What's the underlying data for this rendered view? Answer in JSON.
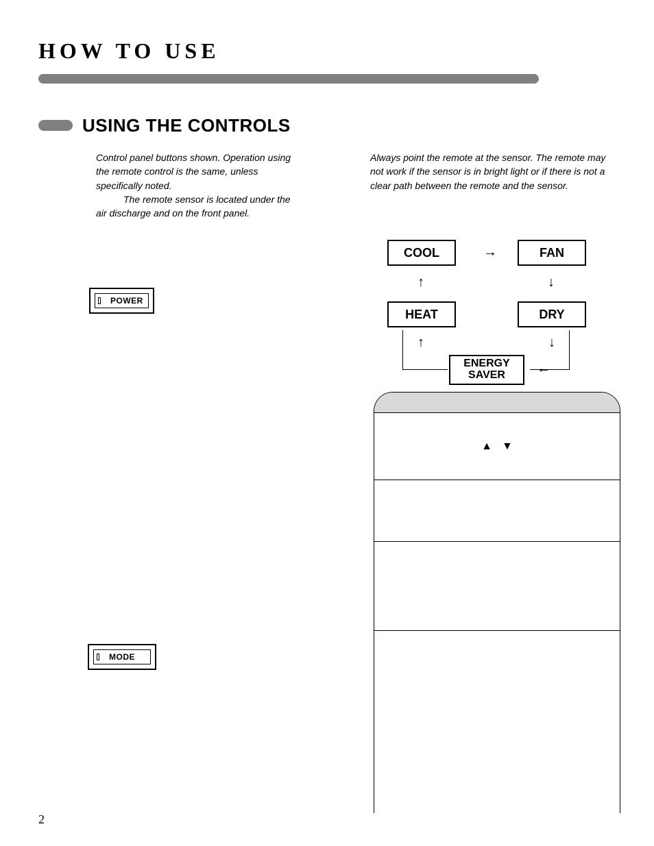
{
  "page": {
    "title": "HOW TO USE",
    "section_heading": "USING THE CONTROLS",
    "page_number": "2"
  },
  "intro": {
    "left_p1": "Control panel buttons shown. Operation using the remote control is the same, unless specifically noted.",
    "left_p2": "The remote sensor is located under the air discharge and on the front panel.",
    "right": "Always point the remote at the sensor. The remote may not work if the sensor is in bright light or if there is not a clear path between the remote and the sensor."
  },
  "buttons": {
    "power": "POWER",
    "mode": "MODE"
  },
  "mode_diagram": {
    "cool": "COOL",
    "fan": "FAN",
    "heat": "HEAT",
    "dry": "DRY",
    "energy_saver": "ENERGY SAVER",
    "arrows": {
      "right": "→",
      "down": "↓",
      "up": "↑",
      "left": "←"
    }
  },
  "panel": {
    "up_triangle": "▲",
    "down_triangle": "▼"
  },
  "styling": {
    "page_bg": "#ffffff",
    "bar_color": "#808080",
    "panel_header_bg": "#d9d9d9",
    "border_color": "#000000",
    "title_fontsize_pt": 24,
    "heading_fontsize_pt": 20,
    "body_fontsize_pt": 11,
    "mode_box_fontsize_pt": 14
  }
}
